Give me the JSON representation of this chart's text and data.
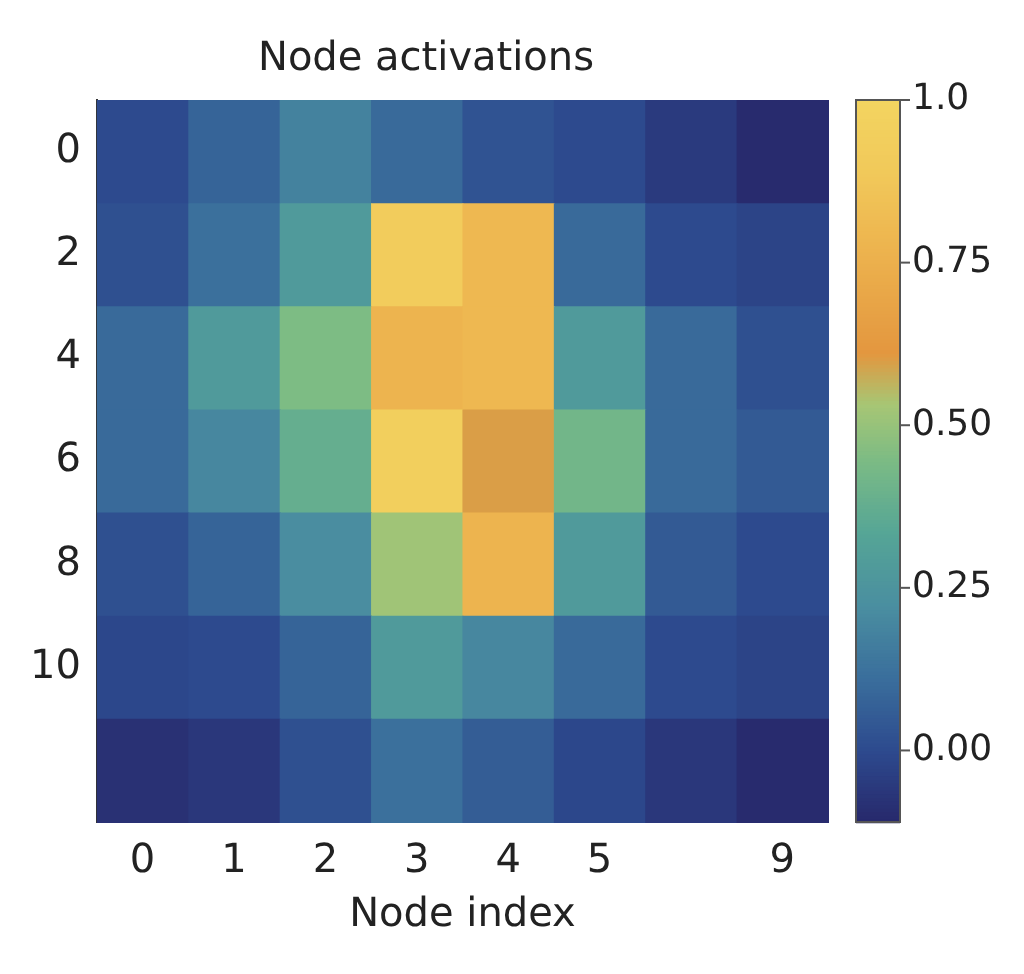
{
  "chart_data": {
    "type": "heatmap",
    "title": "Node activations",
    "xlabel": "Node index",
    "categories": [
      "0",
      "1",
      "2",
      "3",
      "4",
      "5",
      null,
      "9"
    ],
    "y_categories": [
      "0",
      "2",
      "4",
      "6",
      "8",
      "10",
      null
    ],
    "cells": [
      [
        0.0,
        0.08,
        0.18,
        0.1,
        0.03,
        0.0,
        -0.05,
        -0.1
      ],
      [
        0.02,
        0.12,
        0.28,
        0.92,
        0.8,
        0.1,
        0.0,
        -0.02
      ],
      [
        0.1,
        0.28,
        0.45,
        0.78,
        0.8,
        0.28,
        0.1,
        0.02
      ],
      [
        0.1,
        0.2,
        0.38,
        0.95,
        0.6,
        0.42,
        0.1,
        0.05
      ],
      [
        0.02,
        0.08,
        0.22,
        0.52,
        0.78,
        0.28,
        0.05,
        0.0
      ],
      [
        -0.01,
        0.0,
        0.08,
        0.28,
        0.2,
        0.1,
        0.0,
        -0.02
      ],
      [
        -0.08,
        -0.06,
        0.02,
        0.12,
        0.06,
        -0.01,
        -0.06,
        -0.1
      ]
    ],
    "clim": [
      -0.11,
      1.0
    ],
    "cticks": [
      {
        "value": 0,
        "label": "0.00"
      },
      {
        "value": 0.25,
        "label": "0.25"
      },
      {
        "value": 0.5,
        "label": "0.50"
      },
      {
        "value": 0.75,
        "label": "0.75"
      },
      {
        "value": 1.0,
        "label": "1.0"
      }
    ]
  }
}
